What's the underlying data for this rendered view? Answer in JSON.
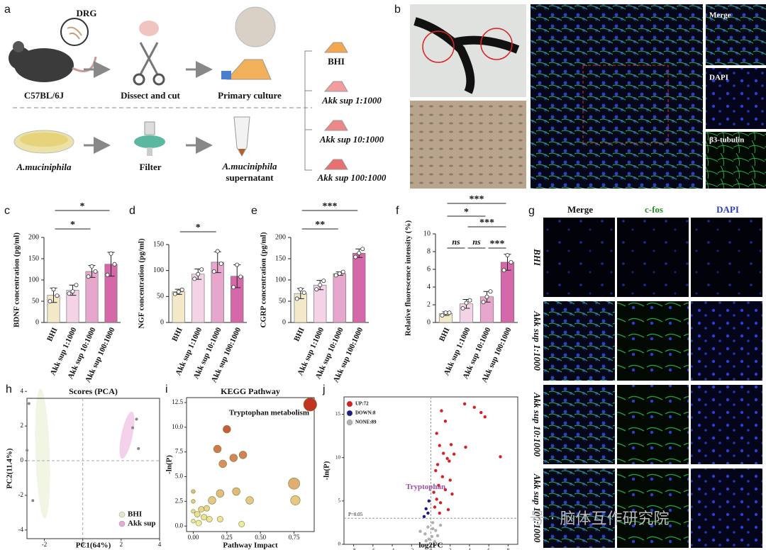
{
  "panel_a": {
    "panel": "a",
    "callout": "DRG",
    "steps": [
      "C57BL/6J",
      "Dissect and cut",
      "Primary culture",
      "A.muciniphila",
      "Filter"
    ],
    "supernatant": [
      "A.muciniphila",
      "supernatant"
    ],
    "groups": [
      "BHI",
      "Akk sup 1:1000",
      "Akk sup 10:1000",
      "Akk sup 100:1000"
    ]
  },
  "panel_b": {
    "panel": "b",
    "channels": [
      "Merge",
      "DAPI",
      "β3-tubulin"
    ]
  },
  "panel_g": {
    "panel": "g",
    "columns": [
      "Merge",
      "c-fos",
      "DAPI"
    ],
    "rows": [
      "BHI",
      "Akk sup 1:1000",
      "Akk sup 10:1000",
      "Akk sup 100:1000"
    ]
  },
  "watermark": "号 · 脑体互作研究院",
  "chart_data": [
    {
      "type": "bar",
      "panel": "c",
      "y_label": "BDNF concentration (pg/ml)",
      "categories": [
        "BHI",
        "Akk sup 1:1000",
        "Akk sup 10:1000",
        "Akk sup 100:1000"
      ],
      "values": [
        64,
        76,
        120,
        137
      ],
      "errors": [
        17,
        12,
        14,
        28
      ],
      "points": [
        [
          50,
          78,
          63
        ],
        [
          68,
          73,
          88
        ],
        [
          108,
          132,
          120
        ],
        [
          112,
          162,
          137
        ]
      ],
      "colors": [
        "#f3e9c8",
        "#f4d3e6",
        "#e7a6cc",
        "#d568a8"
      ],
      "ylim": [
        0,
        200
      ],
      "yticks": [
        0,
        50,
        100,
        150,
        200
      ],
      "annotations": [
        "*",
        "*"
      ]
    },
    {
      "type": "bar",
      "panel": "d",
      "y_label": "NGF concentration (pg/ml)",
      "categories": [
        "BHI",
        "Akk sup 1:1000",
        "Akk sup 10:1000",
        "Akk sup 100:1000"
      ],
      "values": [
        59,
        93,
        116,
        89
      ],
      "errors": [
        5,
        10,
        20,
        22
      ],
      "points": [
        [
          55,
          59,
          63
        ],
        [
          84,
          93,
          102
        ],
        [
          98,
          137,
          113
        ],
        [
          68,
          111,
          88
        ]
      ],
      "colors": [
        "#f3e9c8",
        "#f4d3e6",
        "#e7a6cc",
        "#d568a8"
      ],
      "ylim": [
        0,
        150
      ],
      "yticks": [
        0,
        50,
        100,
        150
      ],
      "annotations": [
        "*"
      ]
    },
    {
      "type": "bar",
      "panel": "e",
      "y_label": "CGRP concentration (pg/ml)",
      "categories": [
        "BHI",
        "Akk sup 1:1000",
        "Akk sup 10:1000",
        "Akk sup 100:1000"
      ],
      "values": [
        68,
        88,
        115,
        163
      ],
      "errors": [
        12,
        11,
        4,
        10
      ],
      "points": [
        [
          56,
          78,
          70
        ],
        [
          78,
          88,
          98
        ],
        [
          111,
          115,
          119
        ],
        [
          154,
          163,
          173
        ]
      ],
      "colors": [
        "#f3e9c8",
        "#f4d3e6",
        "#e7a6cc",
        "#d568a8"
      ],
      "ylim": [
        0,
        200
      ],
      "yticks": [
        0,
        50,
        100,
        150,
        200
      ],
      "annotations": [
        "***",
        "**"
      ]
    },
    {
      "type": "bar",
      "panel": "f",
      "y_label": "Relative fluorescence intensity (%)",
      "categories": [
        "BHI",
        "Akk sup 1:1000",
        "Akk sup 10:1000",
        "Akk sup 100:1000"
      ],
      "values": [
        1.0,
        2.1,
        2.9,
        6.8
      ],
      "errors": [
        0.2,
        0.5,
        0.6,
        0.9
      ],
      "points": [
        [
          0.8,
          1.1,
          1.1
        ],
        [
          1.6,
          2.2,
          2.5
        ],
        [
          2.3,
          2.9,
          3.5
        ],
        [
          5.9,
          7.6,
          6.8
        ]
      ],
      "colors": [
        "#f3e9c8",
        "#f4d3e6",
        "#e7a6cc",
        "#d568a8"
      ],
      "ylim": [
        0,
        10
      ],
      "yticks": [
        0,
        2,
        4,
        6,
        8,
        10
      ],
      "annotations": [
        "***",
        "*",
        "***",
        "ns",
        "ns",
        "***"
      ]
    },
    {
      "type": "scatter",
      "panel": "h",
      "title": "Scores (PCA)",
      "x_label": "PC1(64%)",
      "y_label": "PC2(11.4%)",
      "xlim": [
        -3.2,
        4
      ],
      "xticks": [
        -2,
        0,
        2,
        4
      ],
      "ylim": [
        -4.5,
        4.5
      ],
      "yticks": [
        -4,
        -2,
        0,
        2,
        4
      ],
      "legend": "lower right",
      "series": [
        {
          "name": "BHI",
          "color": "#e2e8cc",
          "x": [
            -2.8,
            -2.9,
            -2.6
          ],
          "y": [
            3.3,
            0.6,
            -2.3
          ]
        },
        {
          "name": "Akk sup",
          "color": "#e8a8d6",
          "x": [
            2.6,
            2.8,
            2.9
          ],
          "y": [
            1.9,
            2.4,
            0.7
          ]
        }
      ]
    },
    {
      "type": "bubble",
      "panel": "i",
      "title": "KEGG Pathway",
      "x_label": "Pathway Impact",
      "y_label": "-ln(P)",
      "annotation": "Tryptophan metabolism",
      "xlim": [
        -0.05,
        0.9
      ],
      "xticks": [
        {
          "value": 0,
          "label": "0.00"
        },
        0.25,
        {
          "value": 0.5,
          "label": "0.50"
        },
        0.75
      ],
      "ylim": [
        -0.2,
        13
      ],
      "yticks": [
        {
          "value": 0,
          "label": "0.0"
        },
        2.5,
        {
          "value": 5,
          "label": "5.0"
        },
        7.5,
        {
          "value": 10,
          "label": "10.0"
        },
        12.5
      ],
      "x": [
        0.87,
        0.25,
        0.18,
        0.37,
        0.3,
        0.22,
        0.75,
        0.76,
        0.42,
        0.32,
        0.2,
        0.14,
        0.1,
        0.06,
        0.03,
        0.08,
        0.12,
        0.2,
        0.36,
        0.0,
        0.0,
        0.0,
        0.0,
        0.04
      ],
      "y": [
        12.3,
        9.8,
        7.8,
        7.2,
        6.9,
        6.3,
        4.3,
        2.6,
        2.6,
        3.5,
        3.3,
        2.6,
        1.8,
        1.7,
        1.2,
        0.9,
        0.7,
        0.7,
        0.2,
        3.5,
        2.5,
        1.5,
        0.5,
        0.3
      ],
      "sizes": [
        6,
        3,
        3,
        3,
        3,
        3,
        5,
        4,
        3,
        3,
        3,
        3,
        2,
        2,
        2,
        2,
        2,
        2,
        2,
        1,
        1,
        1,
        1,
        2
      ]
    },
    {
      "type": "scatter",
      "panel": "j",
      "x_label": "log2FC",
      "y_label": "-ln(P)",
      "annotation": "Tryptophan",
      "threshold_label": "P=0.05",
      "threshold": 3.0,
      "xlim": [
        -9,
        9
      ],
      "xticks": [
        -8,
        -6,
        -4,
        -2,
        0,
        2,
        4,
        6,
        8
      ],
      "ylim": [
        0,
        17
      ],
      "yticks": [
        0,
        5,
        10,
        15
      ],
      "legend": "upper left",
      "series": [
        {
          "name": "UP:72",
          "color": "#d42020",
          "x": [
            3.5,
            4.5,
            5.2,
            5.6,
            1.1,
            1.5,
            0.6,
            0.9,
            3.6,
            2.1,
            1.3,
            2.4,
            1.7,
            0.7,
            1.9,
            7.2,
            0.5,
            1.2,
            2.0,
            0.8,
            1.5,
            0.3,
            2.2,
            0.6,
            1.0,
            0.4,
            1.8,
            0.9
          ],
          "y": [
            16.2,
            15.8,
            15.2,
            14.7,
            15.4,
            14.2,
            12.8,
            11.4,
            11.2,
            11.5,
            10.5,
            10.4,
            9.9,
            9.2,
            9.6,
            10.1,
            8.5,
            7.8,
            7.4,
            6.8,
            6.3,
            6.0,
            5.8,
            5.2,
            4.8,
            4.3,
            4.0,
            3.6
          ]
        },
        {
          "name": "DOWN:8",
          "color": "#1c1c80",
          "x": [
            -0.3,
            -0.5,
            -0.2,
            -0.7
          ],
          "y": [
            3.6,
            4.1,
            5.0,
            3.2
          ]
        },
        {
          "name": "NONE:89",
          "color": "#b0b0b0",
          "x": [
            0.2,
            -0.3,
            0.5,
            -0.6,
            0.1,
            -0.2,
            0.4,
            -1.1,
            1.0,
            0.7,
            -0.5,
            0.2
          ],
          "y": [
            2.5,
            2.0,
            1.6,
            1.2,
            0.9,
            0.6,
            0.3,
            1.5,
            2.2,
            1.0,
            0.4,
            1.8
          ]
        }
      ]
    }
  ]
}
